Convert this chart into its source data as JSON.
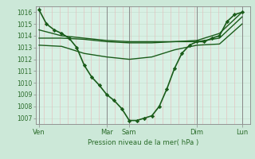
{
  "bg_color": "#cce8d8",
  "plot_bg": "#d8f0e4",
  "grid_v_color": "#e8b8b8",
  "grid_h_color": "#c8e0d0",
  "line_color": "#1a5c1a",
  "marker_color": "#1a5c1a",
  "text_color": "#2a6c2a",
  "xlabel": "Pression niveau de la mer( hPa )",
  "ylim": [
    1006.5,
    1016.5
  ],
  "yticks": [
    1007,
    1008,
    1009,
    1010,
    1011,
    1012,
    1013,
    1014,
    1015,
    1016
  ],
  "day_positions": [
    0,
    3,
    4,
    7,
    9
  ],
  "day_labels": [
    "Ven",
    "Mar",
    "Sam",
    "Dim",
    "Lun"
  ],
  "lines": [
    {
      "x": [
        0,
        0.33,
        0.67,
        1,
        1.33,
        1.67,
        2,
        2.33,
        2.67,
        3,
        3.33,
        3.67,
        4,
        4.33,
        4.67,
        5,
        5.33,
        5.67,
        6,
        6.33,
        6.67,
        7,
        7.33,
        7.67,
        8,
        8.33,
        8.67,
        9
      ],
      "y": [
        1016.2,
        1015.0,
        1014.5,
        1014.2,
        1013.8,
        1013.0,
        1011.5,
        1010.5,
        1009.8,
        1009.0,
        1008.5,
        1007.8,
        1006.8,
        1006.8,
        1007.0,
        1007.2,
        1008.0,
        1009.5,
        1011.2,
        1012.5,
        1013.2,
        1013.5,
        1013.5,
        1013.8,
        1014.0,
        1015.2,
        1015.8,
        1016.0
      ],
      "marker": "D",
      "markersize": 2.2,
      "linewidth": 1.2,
      "zorder": 6
    },
    {
      "x": [
        0,
        1,
        2,
        3,
        4,
        5,
        6,
        7,
        8,
        9
      ],
      "y": [
        1014.5,
        1014.0,
        1013.8,
        1013.6,
        1013.5,
        1013.5,
        1013.5,
        1013.6,
        1014.2,
        1016.0
      ],
      "marker": null,
      "markersize": 0,
      "linewidth": 1.0,
      "zorder": 4
    },
    {
      "x": [
        0,
        1,
        2,
        3,
        4,
        5,
        6,
        7,
        8,
        9
      ],
      "y": [
        1013.8,
        1013.8,
        1013.7,
        1013.5,
        1013.4,
        1013.4,
        1013.5,
        1013.5,
        1013.8,
        1015.6
      ],
      "marker": null,
      "markersize": 0,
      "linewidth": 1.0,
      "zorder": 4
    },
    {
      "x": [
        0,
        1,
        2,
        3,
        4,
        5,
        6,
        7,
        8,
        9
      ],
      "y": [
        1013.2,
        1013.1,
        1012.5,
        1012.2,
        1012.0,
        1012.2,
        1012.8,
        1013.2,
        1013.3,
        1015.0
      ],
      "marker": null,
      "markersize": 0,
      "linewidth": 1.0,
      "zorder": 4
    }
  ],
  "vline_positions": [
    0,
    3,
    4,
    7,
    9
  ],
  "vline_color": "#888888",
  "vline_linewidth": 0.7,
  "num_minor_v": 27,
  "xlim": [
    -0.15,
    9.35
  ]
}
